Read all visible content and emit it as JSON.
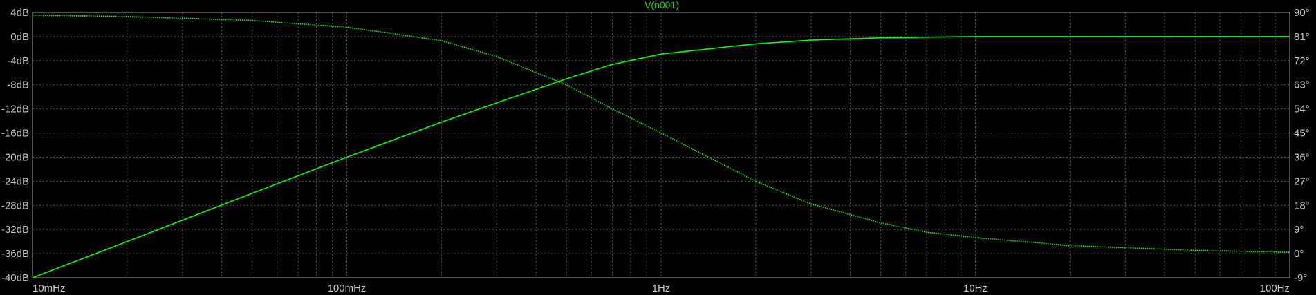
{
  "chart_data": {
    "type": "line",
    "title": "V(n001)",
    "xscale": "log",
    "xlim_hz": [
      0.01,
      100
    ],
    "x_ticks": [
      "10mHz",
      "100mHz",
      "1Hz",
      "10Hz",
      "100Hz"
    ],
    "y_left": {
      "unit": "dB",
      "lim": [
        -40,
        4
      ],
      "ticks": [
        "4dB",
        "0dB",
        "-4dB",
        "-8dB",
        "-12dB",
        "-16dB",
        "-20dB",
        "-24dB",
        "-28dB",
        "-32dB",
        "-36dB",
        "-40dB"
      ]
    },
    "y_right": {
      "unit": "degrees",
      "lim": [
        -9,
        90
      ],
      "ticks": [
        "90°",
        "81°",
        "72°",
        "63°",
        "54°",
        "45°",
        "36°",
        "27°",
        "18°",
        "9°",
        "0°",
        "-9°"
      ]
    },
    "grid": true,
    "series": [
      {
        "name": "",
        "axis": "left",
        "style": "solid",
        "x": [
          0.01,
          0.02,
          0.05,
          0.1,
          0.2,
          0.3,
          0.5,
          0.7,
          1,
          2,
          3,
          5,
          7,
          10,
          20,
          50,
          100
        ],
        "y": [
          -40,
          -34,
          -26,
          -20,
          -14.2,
          -11,
          -7,
          -4.6,
          -2.9,
          -1.2,
          -0.6,
          -0.2,
          -0.1,
          0,
          0,
          0,
          0
        ]
      },
      {
        "name": "",
        "axis": "right",
        "style": "dotted",
        "x": [
          0.01,
          0.02,
          0.05,
          0.1,
          0.2,
          0.3,
          0.5,
          0.7,
          1,
          2,
          3,
          5,
          7,
          10,
          20,
          50,
          100
        ],
        "y": [
          89,
          88.5,
          87,
          84.5,
          79.5,
          73.5,
          63,
          54,
          45,
          27,
          18.5,
          11.5,
          8,
          6,
          3,
          1.2,
          0.5
        ]
      }
    ],
    "colors": {
      "trace": "#00ff00",
      "grid": "#5a5a5a",
      "frame": "#9a9a9a",
      "text": "#c8c8c8",
      "title": "#00e000"
    }
  }
}
